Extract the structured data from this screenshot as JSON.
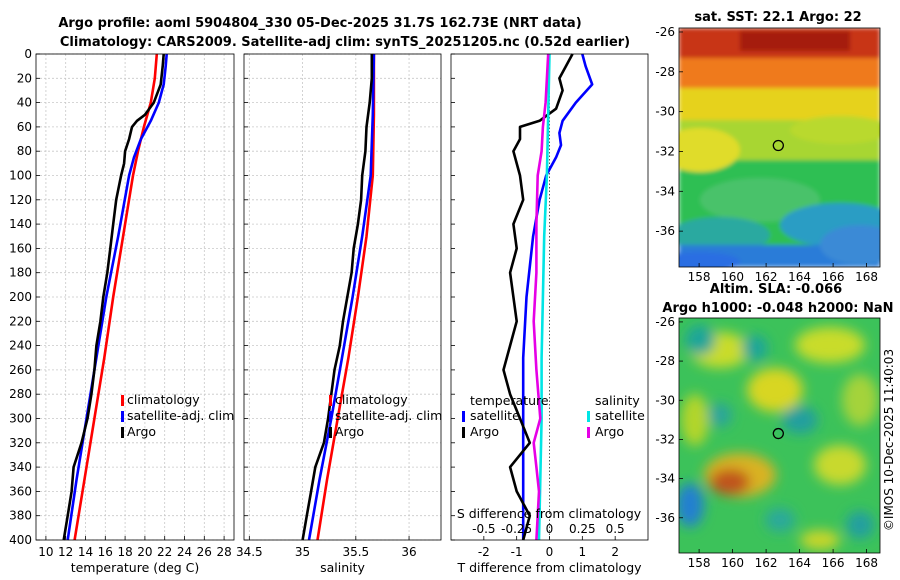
{
  "figure": {
    "title_line1": "Argo profile: aoml 5904804_330 05-Dec-2025 31.7S 162.73E (NRT data)",
    "title_line2": "Climatology: CARS2009. Satellite-adj clim: synTS_20251205.nc (0.52d earlier)",
    "credit": "©IMOS 10-Dec-2025 11:40:03"
  },
  "colors": {
    "climatology": "#ff0000",
    "satellite": "#0000ff",
    "argo": "#000000",
    "sal_satellite": "#00e5e5",
    "sal_argo": "#e600e6",
    "zero_line": "#555555"
  },
  "chart_data": [
    {
      "type": "line",
      "name": "temperature-profile",
      "xlabel": "temperature (deg C)",
      "xlim": [
        9,
        29
      ],
      "xticks": [
        10,
        12,
        14,
        16,
        18,
        20,
        22,
        24,
        26,
        28
      ],
      "ylim": [
        0,
        400
      ],
      "yticks": [
        0,
        20,
        40,
        60,
        80,
        100,
        120,
        140,
        160,
        180,
        200,
        220,
        240,
        260,
        280,
        300,
        320,
        340,
        360,
        380,
        400
      ],
      "y_reversed": true,
      "grid": true,
      "legend": [
        "climatology",
        "satellite-adj. clim",
        "Argo"
      ],
      "series": [
        {
          "name": "climatology",
          "color": "#ff0000",
          "depth": [
            0,
            20,
            40,
            60,
            80,
            100,
            150,
            200,
            250,
            300,
            350,
            400
          ],
          "values": [
            21.2,
            21.0,
            20.6,
            19.9,
            19.3,
            18.8,
            17.8,
            16.8,
            15.9,
            14.9,
            13.9,
            12.9
          ]
        },
        {
          "name": "satellite-adj. clim",
          "color": "#0000ff",
          "depth": [
            0,
            10,
            25,
            40,
            55,
            70,
            85,
            100,
            150,
            200,
            250,
            300,
            350,
            400
          ],
          "values": [
            22.2,
            22.1,
            21.9,
            21.4,
            20.6,
            19.6,
            18.9,
            18.4,
            17.3,
            16.1,
            15.1,
            14.1,
            13.1,
            12.2
          ]
        },
        {
          "name": "Argo",
          "color": "#000000",
          "depth": [
            0,
            10,
            25,
            40,
            50,
            55,
            60,
            70,
            80,
            90,
            100,
            120,
            140,
            160,
            180,
            200,
            220,
            240,
            260,
            280,
            300,
            320,
            340,
            360,
            380,
            400
          ],
          "values": [
            21.9,
            21.8,
            21.6,
            20.9,
            20.0,
            19.2,
            18.7,
            18.4,
            18.0,
            17.9,
            17.6,
            17.1,
            16.8,
            16.5,
            16.2,
            15.8,
            15.5,
            15.1,
            14.9,
            14.6,
            14.2,
            13.6,
            12.8,
            12.6,
            12.2,
            11.8
          ]
        }
      ]
    },
    {
      "type": "line",
      "name": "salinity-profile",
      "xlabel": "salinity",
      "xlim": [
        34.45,
        36.3
      ],
      "xticks": [
        34.5,
        35,
        35.5,
        36
      ],
      "xticklabels": [
        "34.5",
        "35",
        "35.5",
        "36"
      ],
      "ylim": [
        0,
        400
      ],
      "y_reversed": true,
      "grid": true,
      "legend": [
        "climatology",
        "satellite-adj. clim",
        "Argo"
      ],
      "series": [
        {
          "name": "climatology",
          "color": "#ff0000",
          "depth": [
            0,
            50,
            100,
            150,
            200,
            250,
            300,
            350,
            400
          ],
          "values": [
            35.67,
            35.67,
            35.66,
            35.6,
            35.52,
            35.43,
            35.33,
            35.23,
            35.14
          ]
        },
        {
          "name": "satellite-adj. clim",
          "color": "#0000ff",
          "depth": [
            0,
            50,
            100,
            150,
            200,
            250,
            300,
            350,
            400
          ],
          "values": [
            35.67,
            35.66,
            35.64,
            35.56,
            35.47,
            35.37,
            35.27,
            35.16,
            35.06
          ]
        },
        {
          "name": "Argo",
          "color": "#000000",
          "depth": [
            0,
            20,
            40,
            60,
            80,
            100,
            120,
            140,
            160,
            180,
            200,
            220,
            240,
            260,
            280,
            300,
            320,
            340,
            360,
            380,
            400
          ],
          "values": [
            35.65,
            35.65,
            35.63,
            35.6,
            35.59,
            35.56,
            35.55,
            35.52,
            35.48,
            35.46,
            35.42,
            35.38,
            35.35,
            35.3,
            35.27,
            35.24,
            35.2,
            35.12,
            35.08,
            35.04,
            35.0
          ]
        }
      ]
    },
    {
      "type": "line",
      "name": "difference-profile",
      "xlabel": "T difference from climatology",
      "xlabel_secondary": "S difference from climatology",
      "xlim": [
        -3,
        3
      ],
      "xticks": [
        -2,
        -1,
        0,
        1,
        2
      ],
      "xticklabels": [
        "-2",
        "-1",
        "0",
        "1",
        "2"
      ],
      "secondary_ticks": [
        -0.5,
        -0.25,
        0,
        0.25,
        0.5
      ],
      "secondary_ticklabels": [
        "-0.5",
        "-0.25",
        "0",
        "0.25",
        "0.5"
      ],
      "ylim": [
        0,
        400
      ],
      "y_reversed": true,
      "grid": false,
      "legend_temperature_title": "temperature",
      "legend_salinity_title": "salinity",
      "legend_temperature": [
        "satellite",
        "Argo"
      ],
      "legend_salinity": [
        "satellite",
        "Argo"
      ],
      "series": [
        {
          "name": "T satellite",
          "color": "#0000ff",
          "depth": [
            0,
            10,
            25,
            40,
            55,
            65,
            75,
            85,
            100,
            120,
            150,
            200,
            250,
            300,
            350,
            400
          ],
          "values": [
            1.0,
            1.1,
            1.3,
            0.8,
            0.4,
            0.3,
            0.35,
            0.2,
            -0.1,
            -0.3,
            -0.5,
            -0.7,
            -0.8,
            -0.8,
            -0.8,
            -0.8
          ]
        },
        {
          "name": "T Argo",
          "color": "#000000",
          "depth": [
            0,
            10,
            20,
            30,
            45,
            55,
            60,
            70,
            80,
            90,
            100,
            120,
            140,
            160,
            180,
            200,
            220,
            240,
            260,
            280,
            300,
            320,
            340,
            360,
            380,
            400
          ],
          "values": [
            0.7,
            0.5,
            0.3,
            0.4,
            0.2,
            -0.3,
            -0.9,
            -0.9,
            -1.1,
            -1.0,
            -0.9,
            -0.8,
            -1.1,
            -1.0,
            -1.2,
            -1.1,
            -1.0,
            -1.2,
            -1.4,
            -1.2,
            -0.9,
            -0.6,
            -1.2,
            -1.0,
            -0.6,
            -0.8
          ]
        },
        {
          "name": "S satellite",
          "color": "#00e5e5",
          "depth": [
            0,
            50,
            100,
            150,
            200,
            250,
            300,
            350,
            400
          ],
          "values": [
            0.0,
            -0.01,
            -0.02,
            -0.04,
            -0.05,
            -0.06,
            -0.06,
            -0.07,
            -0.08
          ]
        },
        {
          "name": "S Argo",
          "color": "#e600e6",
          "depth": [
            0,
            40,
            60,
            80,
            100,
            140,
            180,
            220,
            260,
            300,
            320,
            340,
            360,
            380,
            400
          ],
          "values": [
            -0.01,
            -0.03,
            -0.05,
            -0.06,
            -0.09,
            -0.1,
            -0.1,
            -0.12,
            -0.1,
            -0.07,
            -0.12,
            -0.1,
            -0.08,
            -0.09,
            -0.1
          ]
        }
      ]
    },
    {
      "type": "heatmap",
      "name": "sst-map",
      "title": "sat. SST: 22.1 Argo: 22",
      "xlim": [
        156.8,
        168.8
      ],
      "ylim": [
        -37.8,
        -25.8
      ],
      "xticks": [
        158,
        160,
        162,
        164,
        166,
        168
      ],
      "yticks": [
        -26,
        -28,
        -30,
        -32,
        -34,
        -36
      ],
      "marker": {
        "lon": 162.73,
        "lat": -31.7
      }
    },
    {
      "type": "heatmap",
      "name": "sla-map",
      "title": "Altim. SLA: -0.066",
      "subtitle": "Argo h1000: -0.048 h2000: NaN",
      "xlim": [
        156.8,
        168.8
      ],
      "ylim": [
        -37.8,
        -25.8
      ],
      "xticks": [
        158,
        160,
        162,
        164,
        166,
        168
      ],
      "yticks": [
        -26,
        -28,
        -30,
        -32,
        -34,
        -36
      ],
      "marker": {
        "lon": 162.73,
        "lat": -31.7
      }
    }
  ]
}
